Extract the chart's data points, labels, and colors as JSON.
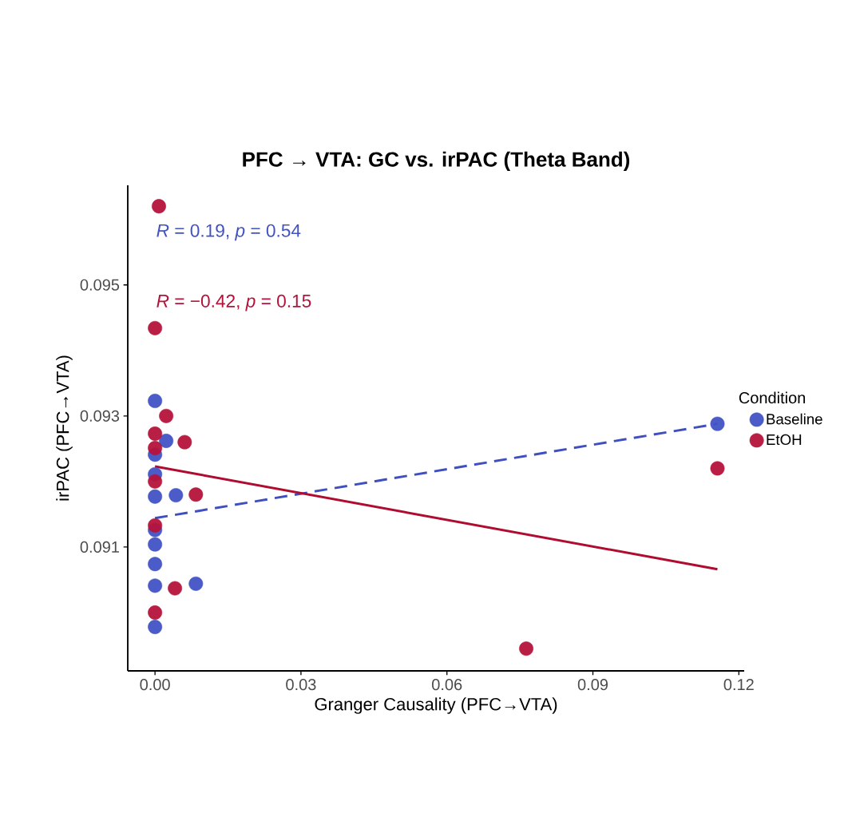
{
  "chart_data": {
    "type": "scatter",
    "title": "PFC → VTA: GC vs. irPAC (Theta Band)",
    "xlabel": "Granger Causality (PFC→VTA)",
    "ylabel": "irPAC (PFC→VTA)",
    "legend_title": "Condition",
    "annotations": [
      "*R* = 0.19, *p* = 0.54",
      "*R* = −0.42, *p* = 0.15"
    ],
    "series": [
      {
        "name": "Baseline",
        "color": "#4152c4",
        "marker": "circle",
        "x": [
          0.0,
          0.0023,
          0.0,
          0.0,
          0.0,
          0.0043,
          0.0,
          0.0,
          0.0,
          0.0,
          0.0084,
          0.0,
          0.1156
        ],
        "values": [
          0.09323,
          0.09262,
          0.09241,
          0.09211,
          0.09177,
          0.09179,
          0.09126,
          0.09104,
          0.09074,
          0.09041,
          0.09044,
          0.08978,
          0.09288
        ]
      },
      {
        "name": "EtOH",
        "color": "#b5133a",
        "marker": "circle",
        "x": [
          0.0008,
          0.0,
          0.0023,
          0.0,
          0.0061,
          0.0,
          0.0,
          0.0084,
          0.0,
          0.0041,
          0.0,
          0.0763,
          0.1156
        ],
        "values": [
          0.0962,
          0.09434,
          0.093,
          0.09273,
          0.0926,
          0.09251,
          0.092,
          0.0918,
          0.09133,
          0.09037,
          0.09,
          0.08945,
          0.0922
        ]
      },
      {
        "type": "line",
        "color": "#3f4fc0",
        "line_style": "dashed",
        "marker": "none",
        "x": [
          0.0,
          0.1156
        ],
        "values": [
          0.09144,
          0.09288
        ]
      },
      {
        "type": "line",
        "color": "#b00c30",
        "line_style": "solid",
        "marker": "none",
        "x": [
          0.0,
          0.1156
        ],
        "values": [
          0.09223,
          0.09066
        ]
      }
    ],
    "legend": "right",
    "xlim": [
      -0.0056,
      0.1211
    ],
    "ylim": [
      0.08911,
      0.09652
    ],
    "xticks": [
      {
        "value": 0,
        "label": "0.00"
      },
      0.03,
      0.06,
      0.09,
      0.12
    ],
    "yticks": [
      0.091,
      0.093,
      0.095
    ]
  }
}
